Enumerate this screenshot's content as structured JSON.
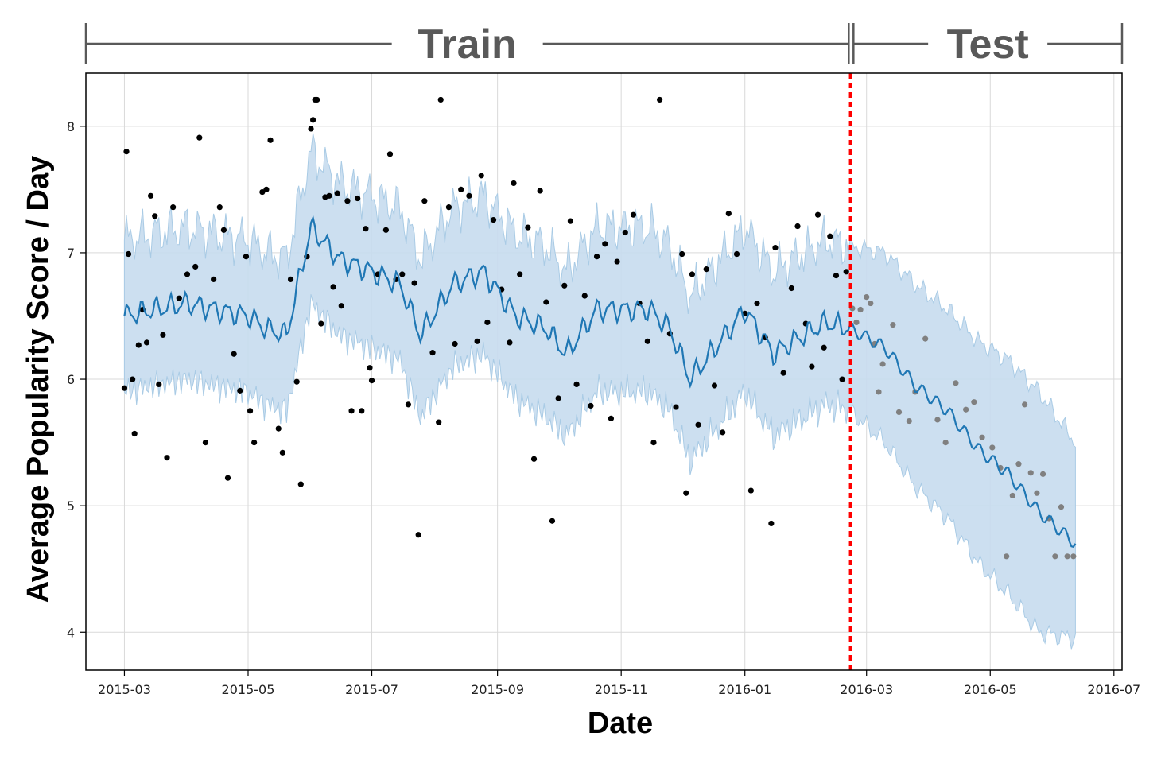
{
  "chart_data": {
    "type": "line",
    "xlabel": "Date",
    "ylabel": "Average Popularity Score / Day",
    "x_range": [
      "2015-02-10",
      "2016-07-05"
    ],
    "ylim": [
      3.7,
      8.42
    ],
    "x_ticks": [
      "2015-03",
      "2015-05",
      "2015-07",
      "2015-09",
      "2015-11",
      "2016-01",
      "2016-03",
      "2016-05",
      "2016-07"
    ],
    "y_ticks": [
      "4",
      "5",
      "6",
      "7",
      "8"
    ],
    "grid": true,
    "split_date": "2016-02-22",
    "split_line_color": "#ff0000",
    "regions": [
      {
        "label": "Train",
        "start": "2015-03-01",
        "end": "2016-02-22"
      },
      {
        "label": "Test",
        "start": "2016-02-22",
        "end": "2016-06-12"
      }
    ],
    "colors": {
      "forecast": "#1f77b4",
      "band": "#c6dcee",
      "train_points": "#000000",
      "test_points": "#808080",
      "bracket": "#595959"
    },
    "forecast": {
      "x": [
        "2015-03-01",
        "2015-03-15",
        "2015-04-01",
        "2015-04-15",
        "2015-05-01",
        "2015-05-10",
        "2015-05-20",
        "2015-06-01",
        "2015-06-15",
        "2015-07-01",
        "2015-07-15",
        "2015-07-25",
        "2015-08-10",
        "2015-08-25",
        "2015-09-10",
        "2015-09-25",
        "2015-10-05",
        "2015-10-20",
        "2015-11-01",
        "2015-11-15",
        "2015-11-25",
        "2015-12-05",
        "2015-12-20",
        "2016-01-01",
        "2016-01-15",
        "2016-01-25",
        "2016-02-10",
        "2016-02-22",
        "2016-03-10",
        "2016-03-25",
        "2016-04-10",
        "2016-04-25",
        "2016-05-10",
        "2016-05-25",
        "2016-06-12"
      ],
      "yhat": [
        6.5,
        6.55,
        6.6,
        6.55,
        6.5,
        6.4,
        6.35,
        7.2,
        6.95,
        6.85,
        6.75,
        6.35,
        6.75,
        6.85,
        6.5,
        6.4,
        6.2,
        6.55,
        6.55,
        6.55,
        6.4,
        6.0,
        6.3,
        6.55,
        6.2,
        6.3,
        6.45,
        6.4,
        6.25,
        5.95,
        5.75,
        5.45,
        5.25,
        4.95,
        4.7
      ],
      "lower": [
        5.9,
        5.95,
        6.0,
        5.95,
        5.9,
        5.8,
        5.75,
        6.6,
        6.35,
        6.25,
        6.15,
        5.7,
        6.1,
        6.2,
        5.85,
        5.7,
        5.55,
        5.9,
        5.9,
        5.9,
        5.75,
        5.35,
        5.65,
        5.9,
        5.55,
        5.65,
        5.8,
        5.75,
        5.5,
        5.15,
        4.9,
        4.55,
        4.3,
        4.0,
        3.95
      ],
      "upper": [
        7.1,
        7.15,
        7.2,
        7.15,
        7.1,
        7.0,
        6.95,
        7.8,
        7.55,
        7.45,
        7.35,
        6.95,
        7.35,
        7.45,
        7.15,
        7.05,
        6.85,
        7.2,
        7.2,
        7.2,
        7.05,
        6.65,
        6.95,
        7.2,
        6.85,
        6.95,
        7.1,
        7.05,
        7.0,
        6.75,
        6.55,
        6.3,
        6.15,
        5.9,
        5.5
      ]
    },
    "train_points": [
      [
        "2015-03-01",
        5.93
      ],
      [
        "2015-03-02",
        7.8
      ],
      [
        "2015-03-03",
        6.99
      ],
      [
        "2015-03-05",
        6.0
      ],
      [
        "2015-03-06",
        5.57
      ],
      [
        "2015-03-08",
        6.27
      ],
      [
        "2015-03-10",
        6.55
      ],
      [
        "2015-03-12",
        6.29
      ],
      [
        "2015-03-14",
        7.45
      ],
      [
        "2015-03-16",
        7.29
      ],
      [
        "2015-03-18",
        5.96
      ],
      [
        "2015-03-20",
        6.35
      ],
      [
        "2015-03-22",
        5.38
      ],
      [
        "2015-03-25",
        7.36
      ],
      [
        "2015-03-28",
        6.64
      ],
      [
        "2015-04-01",
        6.83
      ],
      [
        "2015-04-05",
        6.89
      ],
      [
        "2015-04-07",
        7.91
      ],
      [
        "2015-04-10",
        5.5
      ],
      [
        "2015-04-14",
        6.79
      ],
      [
        "2015-04-17",
        7.36
      ],
      [
        "2015-04-19",
        7.18
      ],
      [
        "2015-04-21",
        5.22
      ],
      [
        "2015-04-24",
        6.2
      ],
      [
        "2015-04-27",
        5.91
      ],
      [
        "2015-04-30",
        6.97
      ],
      [
        "2015-05-02",
        5.75
      ],
      [
        "2015-05-04",
        5.5
      ],
      [
        "2015-05-08",
        7.48
      ],
      [
        "2015-05-10",
        7.5
      ],
      [
        "2015-05-12",
        7.89
      ],
      [
        "2015-05-16",
        5.61
      ],
      [
        "2015-05-18",
        5.42
      ],
      [
        "2015-05-22",
        6.79
      ],
      [
        "2015-05-25",
        5.98
      ],
      [
        "2015-05-27",
        5.17
      ],
      [
        "2015-05-30",
        6.97
      ],
      [
        "2015-06-01",
        7.98
      ],
      [
        "2015-06-02",
        8.05
      ],
      [
        "2015-06-03",
        8.21
      ],
      [
        "2015-06-04",
        8.21
      ],
      [
        "2015-06-06",
        6.44
      ],
      [
        "2015-06-08",
        7.44
      ],
      [
        "2015-06-10",
        7.45
      ],
      [
        "2015-06-12",
        6.73
      ],
      [
        "2015-06-14",
        7.47
      ],
      [
        "2015-06-16",
        6.58
      ],
      [
        "2015-06-19",
        7.41
      ],
      [
        "2015-06-21",
        5.75
      ],
      [
        "2015-06-24",
        7.43
      ],
      [
        "2015-06-26",
        5.75
      ],
      [
        "2015-06-28",
        7.19
      ],
      [
        "2015-06-30",
        6.09
      ],
      [
        "2015-07-01",
        5.99
      ],
      [
        "2015-07-04",
        6.83
      ],
      [
        "2015-07-08",
        7.18
      ],
      [
        "2015-07-10",
        7.78
      ],
      [
        "2015-07-13",
        6.79
      ],
      [
        "2015-07-16",
        6.83
      ],
      [
        "2015-07-19",
        5.8
      ],
      [
        "2015-07-22",
        6.76
      ],
      [
        "2015-07-24",
        4.77
      ],
      [
        "2015-07-27",
        7.41
      ],
      [
        "2015-07-31",
        6.21
      ],
      [
        "2015-08-03",
        5.66
      ],
      [
        "2015-08-04",
        8.21
      ],
      [
        "2015-08-08",
        7.36
      ],
      [
        "2015-08-11",
        6.28
      ],
      [
        "2015-08-14",
        7.5
      ],
      [
        "2015-08-18",
        7.45
      ],
      [
        "2015-08-22",
        6.3
      ],
      [
        "2015-08-24",
        7.61
      ],
      [
        "2015-08-27",
        6.45
      ],
      [
        "2015-08-30",
        7.26
      ],
      [
        "2015-09-03",
        6.71
      ],
      [
        "2015-09-07",
        6.29
      ],
      [
        "2015-09-09",
        7.55
      ],
      [
        "2015-09-12",
        6.83
      ],
      [
        "2015-09-16",
        7.2
      ],
      [
        "2015-09-19",
        5.37
      ],
      [
        "2015-09-22",
        7.49
      ],
      [
        "2015-09-25",
        6.61
      ],
      [
        "2015-09-28",
        4.88
      ],
      [
        "2015-10-01",
        5.85
      ],
      [
        "2015-10-04",
        6.74
      ],
      [
        "2015-10-07",
        7.25
      ],
      [
        "2015-10-10",
        5.96
      ],
      [
        "2015-10-14",
        6.66
      ],
      [
        "2015-10-17",
        5.79
      ],
      [
        "2015-10-20",
        6.97
      ],
      [
        "2015-10-24",
        7.07
      ],
      [
        "2015-10-27",
        5.69
      ],
      [
        "2015-10-30",
        6.93
      ],
      [
        "2015-11-03",
        7.16
      ],
      [
        "2015-11-07",
        7.3
      ],
      [
        "2015-11-10",
        6.6
      ],
      [
        "2015-11-14",
        6.3
      ],
      [
        "2015-11-17",
        5.5
      ],
      [
        "2015-11-20",
        8.21
      ],
      [
        "2015-11-25",
        6.36
      ],
      [
        "2015-11-28",
        5.78
      ],
      [
        "2015-12-01",
        6.99
      ],
      [
        "2015-12-03",
        5.1
      ],
      [
        "2015-12-06",
        6.83
      ],
      [
        "2015-12-09",
        5.64
      ],
      [
        "2015-12-13",
        6.87
      ],
      [
        "2015-12-17",
        5.95
      ],
      [
        "2015-12-21",
        5.58
      ],
      [
        "2015-12-24",
        7.31
      ],
      [
        "2015-12-28",
        6.99
      ],
      [
        "2016-01-01",
        6.52
      ],
      [
        "2016-01-04",
        5.12
      ],
      [
        "2016-01-07",
        6.6
      ],
      [
        "2016-01-11",
        6.33
      ],
      [
        "2016-01-14",
        4.86
      ],
      [
        "2016-01-16",
        7.04
      ],
      [
        "2016-01-20",
        6.05
      ],
      [
        "2016-01-24",
        6.72
      ],
      [
        "2016-01-27",
        7.21
      ],
      [
        "2016-01-31",
        6.44
      ],
      [
        "2016-02-03",
        6.1
      ],
      [
        "2016-02-06",
        7.3
      ],
      [
        "2016-02-09",
        6.25
      ],
      [
        "2016-02-12",
        7.13
      ],
      [
        "2016-02-15",
        6.82
      ],
      [
        "2016-02-18",
        6.0
      ],
      [
        "2016-02-20",
        6.85
      ]
    ],
    "test_points": [
      [
        "2016-02-23",
        6.56
      ],
      [
        "2016-02-25",
        6.45
      ],
      [
        "2016-02-27",
        6.55
      ],
      [
        "2016-03-01",
        6.65
      ],
      [
        "2016-03-03",
        6.6
      ],
      [
        "2016-03-05",
        6.28
      ],
      [
        "2016-03-07",
        5.9
      ],
      [
        "2016-03-09",
        6.12
      ],
      [
        "2016-03-14",
        6.43
      ],
      [
        "2016-03-17",
        5.74
      ],
      [
        "2016-03-22",
        5.67
      ],
      [
        "2016-03-25",
        5.9
      ],
      [
        "2016-03-30",
        6.32
      ],
      [
        "2016-04-05",
        5.68
      ],
      [
        "2016-04-09",
        5.5
      ],
      [
        "2016-04-14",
        5.97
      ],
      [
        "2016-04-19",
        5.76
      ],
      [
        "2016-04-23",
        5.82
      ],
      [
        "2016-04-27",
        5.54
      ],
      [
        "2016-05-02",
        5.46
      ],
      [
        "2016-05-06",
        5.3
      ],
      [
        "2016-05-09",
        4.6
      ],
      [
        "2016-05-12",
        5.08
      ],
      [
        "2016-05-15",
        5.33
      ],
      [
        "2016-05-18",
        5.8
      ],
      [
        "2016-05-21",
        5.26
      ],
      [
        "2016-05-24",
        5.1
      ],
      [
        "2016-05-27",
        5.25
      ],
      [
        "2016-05-30",
        4.9
      ],
      [
        "2016-06-02",
        4.6
      ],
      [
        "2016-06-05",
        4.99
      ],
      [
        "2016-06-08",
        4.6
      ],
      [
        "2016-06-11",
        4.6
      ]
    ]
  }
}
